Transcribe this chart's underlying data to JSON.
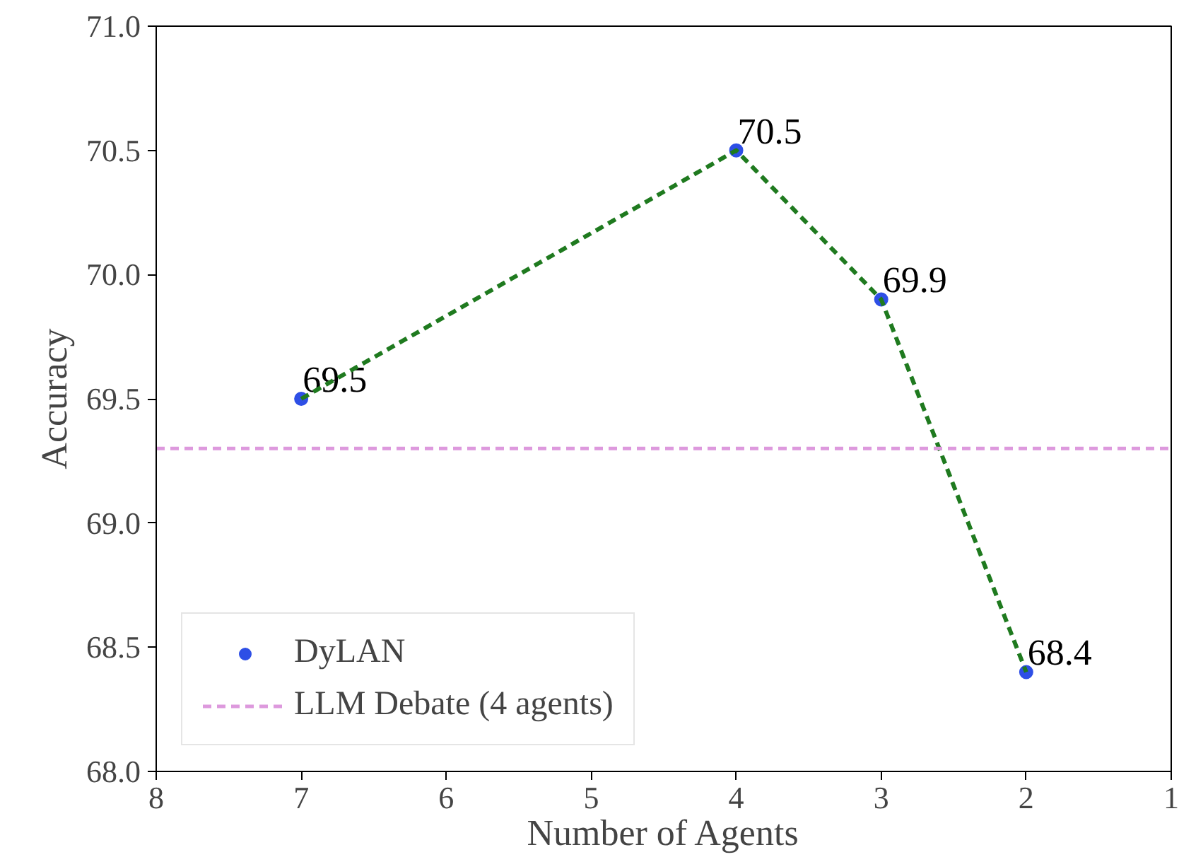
{
  "chart_data": {
    "type": "line",
    "xlabel": "Number of Agents",
    "ylabel": "Accuracy",
    "x": [
      7,
      4,
      3,
      2
    ],
    "series": [
      {
        "name": "DyLAN",
        "type": "scatter",
        "color": "#2e4fe6",
        "marker": "circle",
        "values": [
          69.5,
          70.5,
          69.9,
          68.4
        ],
        "value_labels": [
          "69.5",
          "70.5",
          "69.9",
          "68.4"
        ]
      },
      {
        "color": "#1f7a1f",
        "line_style": "dashed",
        "marker": "none",
        "values": [
          69.5,
          70.5,
          69.9,
          68.4
        ]
      }
    ],
    "xlim": [
      8,
      1
    ],
    "xticks": [
      8,
      7,
      6,
      5,
      4,
      3,
      2,
      1
    ],
    "ylim": [
      68.0,
      71.0
    ],
    "yticks": [
      {
        "value": 68,
        "label": "68.0"
      },
      68.5,
      {
        "value": 69,
        "label": "69.0"
      },
      69.5,
      {
        "value": 70,
        "label": "70.0"
      },
      70.5,
      {
        "value": 71,
        "label": "71.0"
      }
    ],
    "ref_lines": [
      {
        "axis": "y",
        "value": 69.3,
        "label": "LLM Debate (4 agents)",
        "color": "#dd99dd",
        "line_style": "dashed"
      }
    ],
    "grid": false,
    "legend": "bottom left"
  }
}
